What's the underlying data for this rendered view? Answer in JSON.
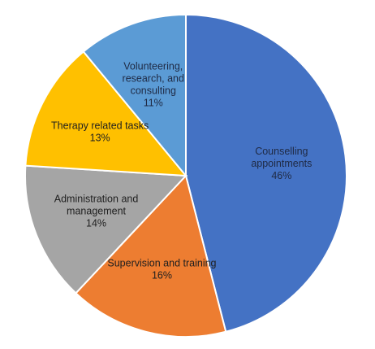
{
  "chart_data": {
    "type": "pie",
    "title": "",
    "start_angle_deg": 0,
    "direction": "clockwise",
    "slices": [
      {
        "label_lines": [
          "Counselling",
          "appointments"
        ],
        "value": 46,
        "value_label": "46%",
        "color": "#4472C4",
        "text_color": "#1F2A44"
      },
      {
        "label_lines": [
          "Supervision and training"
        ],
        "value": 16,
        "value_label": "16%",
        "color": "#ED7D31",
        "text_color": "#1F1F1F"
      },
      {
        "label_lines": [
          "Administration and",
          "management"
        ],
        "value": 14,
        "value_label": "14%",
        "color": "#A5A5A5",
        "text_color": "#1F1F1F"
      },
      {
        "label_lines": [
          "Therapy related tasks"
        ],
        "value": 13,
        "value_label": "13%",
        "color": "#FFC000",
        "text_color": "#1F1F1F"
      },
      {
        "label_lines": [
          "Volunteering,",
          "research, and",
          "consulting"
        ],
        "value": 11,
        "value_label": "11%",
        "color": "#5B9BD5",
        "text_color": "#1F2A44"
      }
    ]
  }
}
